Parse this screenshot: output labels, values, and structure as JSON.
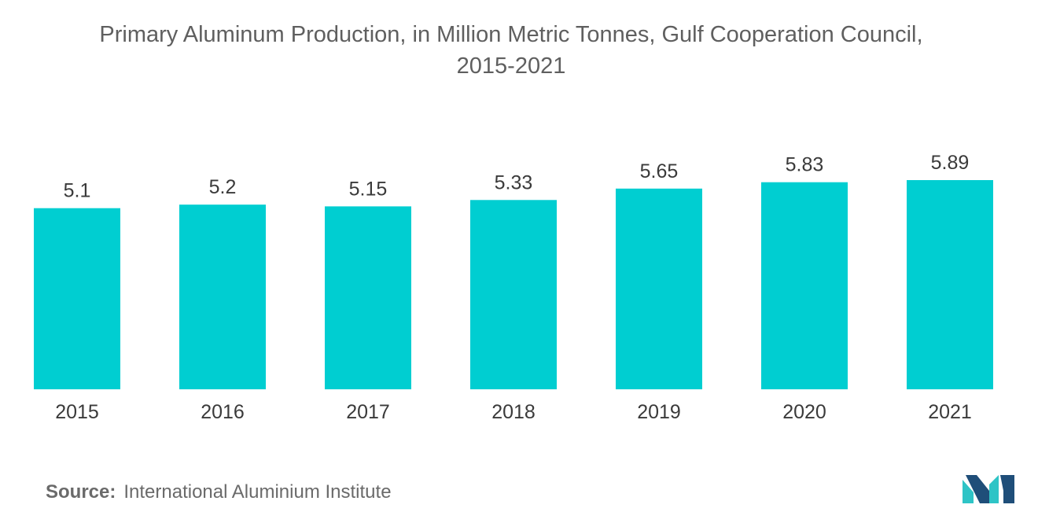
{
  "title_line1": "Primary Aluminum Production, in Million Metric Tonnes, Gulf Cooperation Council,",
  "title_line2": "2015-2021",
  "source_label": "Source:",
  "source_text": "International Aluminium Institute",
  "logo_icon": "mordor-intelligence-logo-icon",
  "colors": {
    "bar": "#00ced1",
    "logo_dark": "#1f4e79",
    "logo_teal": "#2ec4c6"
  },
  "chart_data": {
    "type": "bar",
    "title": "Primary Aluminum Production, in Million Metric Tonnes, Gulf Cooperation Council, 2015-2021",
    "categories": [
      "2015",
      "2016",
      "2017",
      "2018",
      "2019",
      "2020",
      "2021"
    ],
    "values": [
      5.1,
      5.2,
      5.15,
      5.33,
      5.65,
      5.83,
      5.89
    ],
    "value_labels": [
      "5.1",
      "5.2",
      "5.15",
      "5.33",
      "5.65",
      "5.83",
      "5.89"
    ],
    "xlabel": "",
    "ylabel": "",
    "ylim": [
      0,
      5.89
    ],
    "grid": false,
    "legend": "none",
    "data_labels": true
  }
}
